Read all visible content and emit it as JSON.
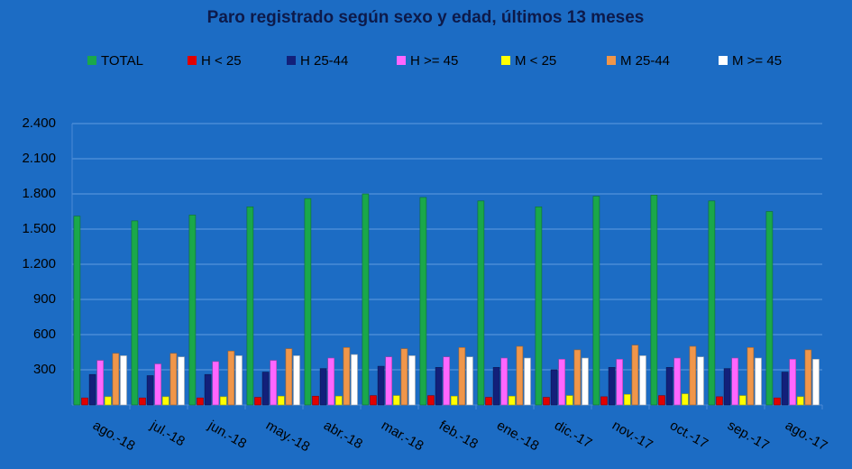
{
  "chart_data": {
    "type": "bar",
    "title": "Paro registrado según sexo y edad, últimos 13 meses",
    "categories": [
      "ago.-18",
      "jul.-18",
      "jun.-18",
      "may.-18",
      "abr.-18",
      "mar.-18",
      "feb.-18",
      "ene.-18",
      "dic.-17",
      "nov.-17",
      "oct.-17",
      "sep.-17",
      "ago.-17"
    ],
    "series": [
      {
        "name": "TOTAL",
        "color": "#1aa84a",
        "values": [
          1610,
          1570,
          1620,
          1690,
          1760,
          1800,
          1770,
          1740,
          1690,
          1780,
          1790,
          1740,
          1650
        ]
      },
      {
        "name": "H < 25",
        "color": "#e00000",
        "values": [
          60,
          60,
          60,
          65,
          75,
          80,
          80,
          65,
          65,
          70,
          80,
          70,
          60
        ]
      },
      {
        "name": "H 25-44",
        "color": "#12207a",
        "values": [
          260,
          250,
          260,
          280,
          310,
          330,
          320,
          320,
          300,
          320,
          320,
          310,
          280
        ]
      },
      {
        "name": "H >= 45",
        "color": "#ff66ff",
        "values": [
          380,
          350,
          370,
          380,
          400,
          410,
          410,
          400,
          390,
          390,
          400,
          400,
          390
        ]
      },
      {
        "name": "M < 25",
        "color": "#ffff00",
        "values": [
          70,
          70,
          70,
          75,
          75,
          80,
          75,
          75,
          80,
          90,
          95,
          80,
          70
        ]
      },
      {
        "name": "M 25-44",
        "color": "#f0964a",
        "values": [
          440,
          440,
          460,
          480,
          490,
          480,
          490,
          500,
          470,
          510,
          500,
          490,
          470
        ]
      },
      {
        "name": "M >= 45",
        "color": "#ffffff",
        "values": [
          420,
          410,
          420,
          420,
          430,
          420,
          410,
          400,
          400,
          420,
          410,
          400,
          390
        ]
      }
    ],
    "ylim": [
      0,
      2400
    ],
    "yticks": [
      300,
      600,
      900,
      {
        "value": 1200,
        "label": "1.200"
      },
      {
        "value": 1500,
        "label": "1.500"
      },
      {
        "value": 1800,
        "label": "1.800"
      },
      {
        "value": 2100,
        "label": "2.100"
      },
      {
        "value": 2400,
        "label": "2.400"
      }
    ],
    "grid": true
  }
}
